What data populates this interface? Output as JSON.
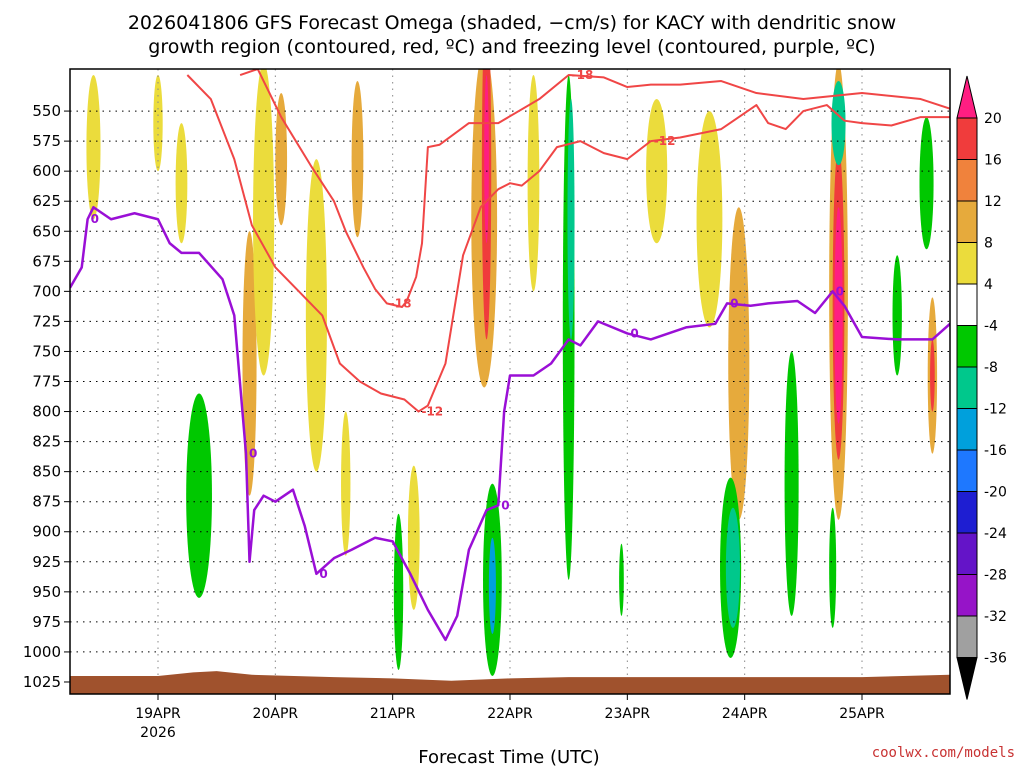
{
  "chart_data": {
    "type": "heatmap",
    "title_line1": "2026041806 GFS Forecast Omega (shaded, −cm/s) for KACY with dendritic snow",
    "title_line2": "growth region (contoured, red, ºC) and freezing level (contoured, purple, ºC)",
    "xlabel": "Forecast Time (UTC)",
    "credit": "coolwx.com/models",
    "x_range_days": [
      18.25,
      25.75
    ],
    "y_range_hpa": [
      1035,
      515
    ],
    "x_ticks": [
      {
        "label": "19APR",
        "sub": "2026",
        "day": 19
      },
      {
        "label": "20APR",
        "sub": "",
        "day": 20
      },
      {
        "label": "21APR",
        "sub": "",
        "day": 21
      },
      {
        "label": "22APR",
        "sub": "",
        "day": 22
      },
      {
        "label": "23APR",
        "sub": "",
        "day": 23
      },
      {
        "label": "24APR",
        "sub": "",
        "day": 24
      },
      {
        "label": "25APR",
        "sub": "",
        "day": 25
      }
    ],
    "y_ticks": [
      "550",
      "575",
      "600",
      "625",
      "650",
      "675",
      "700",
      "725",
      "750",
      "775",
      "800",
      "825",
      "850",
      "875",
      "900",
      "925",
      "950",
      "975",
      "1000",
      "1025"
    ],
    "colorbar": {
      "levels": [
        "20",
        "16",
        "12",
        "8",
        "4",
        "-4",
        "-8",
        "-12",
        "-16",
        "-20",
        "-24",
        "-28",
        "-32",
        "-36"
      ],
      "colors": [
        "#ff1e82",
        "#f03c3c",
        "#f0823c",
        "#e6aa3c",
        "#ebdc3c",
        "#ffffff",
        "#00c800",
        "#00c88c",
        "#00a0dc",
        "#1e78ff",
        "#1e1ed2",
        "#6414c8",
        "#9614c8",
        "#a0a0a0",
        "#000000"
      ]
    },
    "freezing_level_0C": {
      "label": "0",
      "color": "#9a0fd6",
      "x": [
        18.25,
        18.35,
        18.4,
        18.45,
        18.6,
        18.8,
        19.0,
        19.1,
        19.2,
        19.35,
        19.55,
        19.65,
        19.75,
        19.78,
        19.82,
        19.9,
        20.0,
        20.15,
        20.25,
        20.35,
        20.5,
        20.65,
        20.85,
        21.0,
        21.15,
        21.3,
        21.45,
        21.55,
        21.65,
        21.8,
        21.9,
        21.95,
        22.0,
        22.2,
        22.35,
        22.5,
        22.6,
        22.75,
        23.0,
        23.2,
        23.5,
        23.75,
        23.85,
        24.05,
        24.2,
        24.45,
        24.6,
        24.75,
        24.85,
        25.0,
        25.3,
        25.6,
        25.75
      ],
      "hpa": [
        697,
        680,
        640,
        630,
        640,
        635,
        640,
        660,
        668,
        668,
        690,
        720,
        835,
        925,
        882,
        870,
        875,
        865,
        895,
        935,
        922,
        915,
        905,
        908,
        935,
        965,
        990,
        970,
        915,
        882,
        878,
        800,
        770,
        770,
        760,
        740,
        745,
        725,
        735,
        740,
        730,
        727,
        710,
        712,
        710,
        708,
        718,
        700,
        712,
        738,
        740,
        740,
        727
      ]
    },
    "dgz_contours": [
      {
        "label": "-18",
        "color": "#f04646",
        "x": [
          19.7,
          19.85,
          20.05,
          20.3,
          20.5,
          20.6,
          20.75,
          20.85,
          20.95,
          21.08,
          21.12,
          21.2,
          21.25,
          21.3,
          21.4,
          21.65,
          21.9,
          22.25,
          22.5,
          22.8,
          23.0,
          23.2,
          23.45,
          23.8,
          24.1,
          24.5,
          25.0,
          25.5,
          25.75
        ],
        "hpa": [
          520,
          515,
          555,
          595,
          625,
          650,
          680,
          698,
          710,
          713,
          708,
          688,
          660,
          580,
          578,
          560,
          560,
          540,
          520,
          522,
          530,
          528,
          528,
          525,
          535,
          540,
          535,
          540,
          548
        ]
      },
      {
        "label": "-12",
        "color": "#f04646",
        "x": [
          19.25,
          19.45,
          19.65,
          19.8,
          20.0,
          20.2,
          20.4,
          20.55,
          20.72,
          20.9,
          21.1,
          21.22,
          21.3,
          21.45,
          21.6,
          21.75,
          21.9,
          22.0,
          22.1,
          22.25,
          22.4,
          22.6,
          22.8,
          23.0,
          23.2,
          23.45,
          23.8,
          24.1,
          24.2,
          24.35,
          24.5,
          24.7,
          24.85,
          25.0,
          25.25,
          25.5,
          25.75
        ],
        "hpa": [
          520,
          540,
          590,
          645,
          680,
          700,
          720,
          760,
          775,
          785,
          790,
          800,
          795,
          760,
          670,
          630,
          615,
          610,
          612,
          600,
          580,
          575,
          585,
          590,
          575,
          572,
          565,
          545,
          560,
          565,
          550,
          545,
          558,
          560,
          562,
          555,
          555
        ]
      }
    ],
    "omega_blobs": [
      {
        "day": 18.45,
        "hpa": 580,
        "w_day": 0.12,
        "h_hpa": 120,
        "value": 4
      },
      {
        "day": 19.0,
        "hpa": 560,
        "w_day": 0.08,
        "h_hpa": 80,
        "value": 4
      },
      {
        "day": 19.2,
        "hpa": 610,
        "w_day": 0.1,
        "h_hpa": 100,
        "value": 4
      },
      {
        "day": 19.35,
        "hpa": 870,
        "w_day": 0.22,
        "h_hpa": 170,
        "value": -8
      },
      {
        "day": 19.78,
        "hpa": 760,
        "w_day": 0.12,
        "h_hpa": 220,
        "value": 8
      },
      {
        "day": 19.9,
        "hpa": 640,
        "w_day": 0.18,
        "h_hpa": 260,
        "value": 4
      },
      {
        "day": 20.05,
        "hpa": 590,
        "w_day": 0.1,
        "h_hpa": 110,
        "value": 8
      },
      {
        "day": 20.35,
        "hpa": 720,
        "w_day": 0.18,
        "h_hpa": 260,
        "value": 4
      },
      {
        "day": 20.7,
        "hpa": 590,
        "w_day": 0.1,
        "h_hpa": 130,
        "value": 8
      },
      {
        "day": 20.6,
        "hpa": 860,
        "w_day": 0.08,
        "h_hpa": 120,
        "value": 4
      },
      {
        "day": 21.05,
        "hpa": 950,
        "w_day": 0.08,
        "h_hpa": 130,
        "value": -8
      },
      {
        "day": 21.18,
        "hpa": 905,
        "w_day": 0.1,
        "h_hpa": 120,
        "value": 4
      },
      {
        "day": 21.78,
        "hpa": 640,
        "w_day": 0.22,
        "h_hpa": 280,
        "value": 8
      },
      {
        "day": 21.8,
        "hpa": 600,
        "w_day": 0.08,
        "h_hpa": 280,
        "value": 16
      },
      {
        "day": 21.8,
        "hpa": 590,
        "w_day": 0.04,
        "h_hpa": 140,
        "value": 20
      },
      {
        "day": 21.85,
        "hpa": 940,
        "w_day": 0.16,
        "h_hpa": 160,
        "value": -8
      },
      {
        "day": 21.85,
        "hpa": 945,
        "w_day": 0.06,
        "h_hpa": 80,
        "value": -16
      },
      {
        "day": 22.5,
        "hpa": 730,
        "w_day": 0.1,
        "h_hpa": 420,
        "value": -8
      },
      {
        "day": 22.52,
        "hpa": 640,
        "w_day": 0.06,
        "h_hpa": 200,
        "value": -12
      },
      {
        "day": 22.2,
        "hpa": 610,
        "w_day": 0.1,
        "h_hpa": 180,
        "value": 4
      },
      {
        "day": 22.95,
        "hpa": 940,
        "w_day": 0.04,
        "h_hpa": 60,
        "value": -8
      },
      {
        "day": 23.25,
        "hpa": 600,
        "w_day": 0.18,
        "h_hpa": 120,
        "value": 4
      },
      {
        "day": 23.7,
        "hpa": 640,
        "w_day": 0.22,
        "h_hpa": 180,
        "value": 4
      },
      {
        "day": 23.95,
        "hpa": 760,
        "w_day": 0.18,
        "h_hpa": 260,
        "value": 8
      },
      {
        "day": 23.88,
        "hpa": 930,
        "w_day": 0.18,
        "h_hpa": 150,
        "value": -8
      },
      {
        "day": 23.9,
        "hpa": 930,
        "w_day": 0.12,
        "h_hpa": 100,
        "value": -12
      },
      {
        "day": 24.4,
        "hpa": 860,
        "w_day": 0.12,
        "h_hpa": 220,
        "value": -8
      },
      {
        "day": 24.8,
        "hpa": 700,
        "w_day": 0.16,
        "h_hpa": 380,
        "value": 8
      },
      {
        "day": 24.8,
        "hpa": 710,
        "w_day": 0.1,
        "h_hpa": 260,
        "value": 16
      },
      {
        "day": 24.8,
        "hpa": 720,
        "w_day": 0.07,
        "h_hpa": 180,
        "value": 20
      },
      {
        "day": 24.8,
        "hpa": 560,
        "w_day": 0.12,
        "h_hpa": 70,
        "value": -12
      },
      {
        "day": 24.75,
        "hpa": 930,
        "w_day": 0.06,
        "h_hpa": 100,
        "value": -8
      },
      {
        "day": 25.3,
        "hpa": 720,
        "w_day": 0.08,
        "h_hpa": 100,
        "value": -8
      },
      {
        "day": 25.55,
        "hpa": 610,
        "w_day": 0.12,
        "h_hpa": 110,
        "value": -8
      },
      {
        "day": 25.6,
        "hpa": 770,
        "w_day": 0.08,
        "h_hpa": 130,
        "value": 8
      },
      {
        "day": 25.6,
        "hpa": 770,
        "w_day": 0.04,
        "h_hpa": 60,
        "value": 16
      }
    ],
    "terrain_color": "#a0522d"
  }
}
